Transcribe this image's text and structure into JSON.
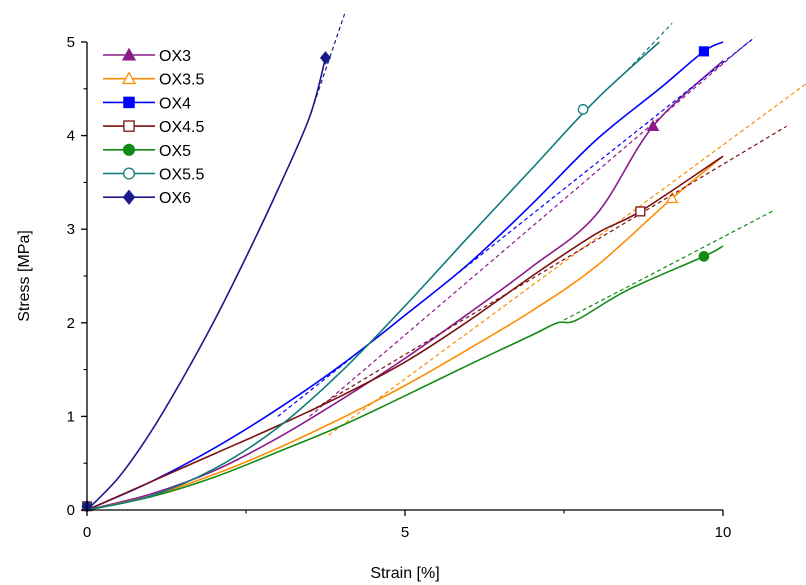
{
  "chart_data": {
    "type": "line",
    "title": "",
    "xlabel": "Strain [%]",
    "ylabel": "Stress [MPa]",
    "xlim": [
      0,
      10
    ],
    "ylim": [
      0,
      5
    ],
    "x_ticks": [
      0,
      5,
      10
    ],
    "y_ticks": [
      0,
      1,
      2,
      3,
      4,
      5
    ],
    "grid": false,
    "legend_position": "top-left",
    "series": [
      {
        "name": "OX3",
        "color": "#8B1A8B",
        "marker": "triangle-filled",
        "x": [
          0,
          1,
          2,
          3,
          4,
          5,
          6,
          7,
          8,
          8.9,
          10
        ],
        "y": [
          0,
          0.17,
          0.42,
          0.77,
          1.18,
          1.62,
          2.1,
          2.6,
          3.15,
          4.1,
          4.8
        ],
        "marker_point": [
          8.9,
          4.1
        ],
        "fit_line": [
          [
            3.5,
            1.0
          ],
          [
            10.4,
            5.0
          ]
        ]
      },
      {
        "name": "OX3.5",
        "color": "#FF8C00",
        "marker": "triangle-open",
        "x": [
          0,
          1,
          2,
          3,
          4,
          5,
          6,
          7,
          8,
          9.2,
          10
        ],
        "y": [
          0,
          0.15,
          0.38,
          0.66,
          0.98,
          1.33,
          1.72,
          2.13,
          2.6,
          3.33,
          3.78
        ],
        "marker_point": [
          9.2,
          3.33
        ],
        "fit_line": [
          [
            3.8,
            0.8
          ],
          [
            11.3,
            4.55
          ]
        ]
      },
      {
        "name": "OX4",
        "color": "#0000FF",
        "marker": "square-filled",
        "x": [
          0,
          1,
          2,
          3,
          4,
          5,
          6,
          7,
          8,
          9,
          9.7,
          10
        ],
        "y": [
          0,
          0.3,
          0.66,
          1.08,
          1.55,
          2.08,
          2.63,
          3.27,
          3.95,
          4.5,
          4.9,
          5.0
        ],
        "marker_point": [
          9.7,
          4.9
        ],
        "fit_line": [
          [
            3.0,
            1.0
          ],
          [
            10.5,
            5.05
          ]
        ]
      },
      {
        "name": "OX4.5",
        "color": "#7B1010",
        "marker": "square-open",
        "x": [
          0,
          1,
          2,
          3,
          4,
          5,
          6,
          7,
          8,
          8.7,
          10
        ],
        "y": [
          0,
          0.3,
          0.6,
          0.9,
          1.22,
          1.58,
          2.02,
          2.5,
          2.95,
          3.19,
          3.78
        ],
        "marker_point": [
          8.7,
          3.19
        ],
        "fit_line": [
          [
            3.5,
            1.05
          ],
          [
            11.0,
            4.1
          ]
        ]
      },
      {
        "name": "OX5",
        "color": "#138A13",
        "marker": "circle-filled",
        "x": [
          0,
          1,
          2,
          3,
          4,
          5,
          6,
          7,
          7.4,
          7.7,
          8.5,
          9.7,
          10
        ],
        "y": [
          0,
          0.14,
          0.35,
          0.62,
          0.9,
          1.22,
          1.55,
          1.87,
          2.0,
          2.03,
          2.35,
          2.71,
          2.82
        ],
        "marker_point": [
          9.7,
          2.71
        ],
        "fit_line": [
          [
            7.5,
            2.03
          ],
          [
            10.8,
            3.2
          ]
        ]
      },
      {
        "name": "OX5.5",
        "color": "#0E7A7A",
        "marker": "circle-open",
        "x": [
          0,
          1,
          2,
          3,
          4,
          5,
          6,
          7,
          8,
          9
        ],
        "y": [
          0,
          0.15,
          0.44,
          0.88,
          1.48,
          2.18,
          2.92,
          3.65,
          4.38,
          5.0
        ],
        "marker_point": [
          7.8,
          4.28
        ],
        "fit_line": [
          [
            8.5,
            4.7
          ],
          [
            9.2,
            5.2
          ]
        ]
      },
      {
        "name": "OX6",
        "color": "#1A1A8C",
        "marker": "diamond-filled",
        "x": [
          0,
          0.5,
          1,
          1.5,
          2,
          2.5,
          3,
          3.5,
          3.75
        ],
        "y": [
          0,
          0.35,
          0.83,
          1.4,
          2.02,
          2.7,
          3.42,
          4.2,
          4.83
        ],
        "marker_point": [
          3.75,
          4.83
        ],
        "fit_line": [
          [
            3.5,
            4.2
          ],
          [
            4.05,
            5.3
          ]
        ]
      }
    ]
  }
}
